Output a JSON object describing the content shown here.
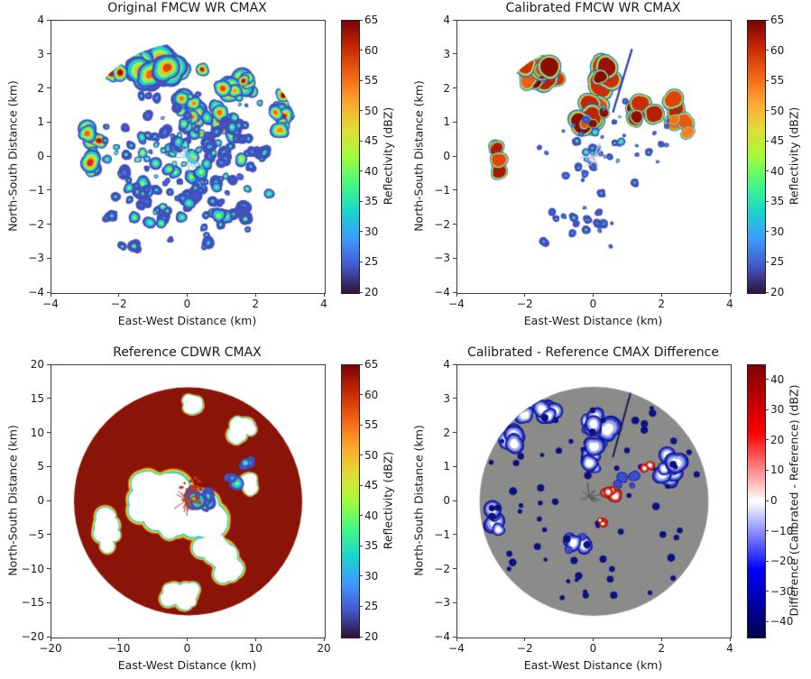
{
  "figure": {
    "background": "#ffffff",
    "description": "Four-panel weather radar CMAX comparison figure"
  },
  "colormaps": {
    "turbo": [
      "#30123b",
      "#4458cb",
      "#3e9bfe",
      "#18d6cb",
      "#46f884",
      "#a2fc3c",
      "#e1dd37",
      "#fea632",
      "#f36315",
      "#c92903",
      "#7a0403"
    ],
    "seismic": [
      "#00004c",
      "#0000ff",
      "#ffffff",
      "#ff0000",
      "#7f0000"
    ]
  },
  "chart_data": {
    "type": "heatmap",
    "panels": [
      {
        "title": "Original FMCW WR CMAX",
        "xlabel": "East-West Distance (km)",
        "ylabel": "North-South Distance (km)",
        "xlim": [
          -4,
          4
        ],
        "ylim": [
          -4,
          4
        ],
        "xticks": [
          -4,
          -2,
          0,
          2,
          4
        ],
        "yticks": [
          4,
          3,
          2,
          1,
          0,
          -1,
          -2,
          -3,
          -4
        ],
        "colorbar": {
          "label": "Reflectivity (dBZ)",
          "range": [
            20,
            65
          ],
          "ticks": [
            65,
            60,
            55,
            50,
            45,
            40,
            35,
            30,
            25,
            20
          ],
          "colormap": "turbo"
        },
        "field": {
          "kind": "echoes",
          "seed": 7,
          "domain_radius_km": 3.35,
          "clusters": [
            {
              "cx": -0.6,
              "cy": 2.55,
              "sx": 1.7,
              "sy": 0.45,
              "n": 24,
              "v": [
                52,
                65
              ],
              "r": [
                0.18,
                0.42
              ]
            },
            {
              "cx": 1.6,
              "cy": 2.1,
              "sx": 0.7,
              "sy": 0.45,
              "n": 10,
              "v": [
                48,
                65
              ],
              "r": [
                0.15,
                0.35
              ]
            },
            {
              "cx": 2.75,
              "cy": 1.1,
              "sx": 0.35,
              "sy": 0.85,
              "n": 12,
              "v": [
                48,
                65
              ],
              "r": [
                0.12,
                0.3
              ]
            },
            {
              "cx": -2.85,
              "cy": 0.2,
              "sx": 0.3,
              "sy": 1.0,
              "n": 10,
              "v": [
                45,
                64
              ],
              "r": [
                0.12,
                0.3
              ]
            },
            {
              "cx": 0.15,
              "cy": 1.3,
              "sx": 0.5,
              "sy": 0.8,
              "n": 12,
              "v": [
                48,
                65
              ],
              "r": [
                0.12,
                0.32
              ]
            },
            {
              "cx": 1.0,
              "cy": 1.0,
              "sx": 0.9,
              "sy": 0.5,
              "n": 8,
              "v": [
                45,
                62
              ],
              "r": [
                0.12,
                0.28
              ]
            },
            {
              "cx": 0,
              "cy": -0.9,
              "sx": 2.7,
              "sy": 1.9,
              "n": 110,
              "v": [
                24,
                45
              ],
              "r": [
                0.06,
                0.2
              ]
            },
            {
              "cx": 0,
              "cy": 0.7,
              "sx": 2.9,
              "sy": 1.7,
              "n": 75,
              "v": [
                24,
                48
              ],
              "r": [
                0.05,
                0.18
              ]
            }
          ],
          "starburst": {
            "x": 0,
            "y": 0,
            "n": 22,
            "len": 0.55,
            "color": "#5ec8dd",
            "w": 1
          }
        }
      },
      {
        "title": "Calibrated FMCW WR CMAX",
        "xlabel": "East-West Distance (km)",
        "ylabel": "North-South Distance (km)",
        "xlim": [
          -4,
          4
        ],
        "ylim": [
          -4,
          4
        ],
        "xticks": [
          -4,
          -2,
          0,
          2,
          4
        ],
        "yticks": [
          4,
          3,
          2,
          1,
          0,
          -1,
          -2,
          -3,
          -4
        ],
        "colorbar": {
          "label": "Reflectivity (dBZ)",
          "range": [
            20,
            65
          ],
          "ticks": [
            65,
            60,
            55,
            50,
            45,
            40,
            35,
            30,
            25,
            20
          ],
          "colormap": "turbo"
        },
        "field": {
          "kind": "echoes",
          "seed": 13,
          "domain_radius_km": 3.35,
          "clusters": [
            {
              "cx": -1.55,
              "cy": 2.5,
              "sx": 0.65,
              "sy": 0.4,
              "n": 12,
              "v": [
                56,
                65
              ],
              "r": [
                0.18,
                0.4
              ],
              "rim": 1
            },
            {
              "cx": 0.1,
              "cy": 2.35,
              "sx": 0.4,
              "sy": 0.4,
              "n": 8,
              "v": [
                56,
                65
              ],
              "r": [
                0.15,
                0.35
              ],
              "rim": 1
            },
            {
              "cx": -0.05,
              "cy": 1.25,
              "sx": 0.45,
              "sy": 0.65,
              "n": 12,
              "v": [
                56,
                65
              ],
              "r": [
                0.15,
                0.38
              ],
              "rim": 1
            },
            {
              "cx": 1.35,
              "cy": 1.35,
              "sx": 0.5,
              "sy": 0.28,
              "n": 7,
              "v": [
                55,
                65
              ],
              "r": [
                0.15,
                0.3
              ],
              "rim": 1
            },
            {
              "cx": 2.55,
              "cy": 1.2,
              "sx": 0.3,
              "sy": 0.85,
              "n": 9,
              "v": [
                54,
                65
              ],
              "r": [
                0.12,
                0.3
              ],
              "rim": 1
            },
            {
              "cx": -2.85,
              "cy": -0.15,
              "sx": 0.22,
              "sy": 0.5,
              "n": 5,
              "v": [
                50,
                64
              ],
              "r": [
                0.12,
                0.26
              ],
              "rim": 1
            },
            {
              "cx": 0.3,
              "cy": 0.2,
              "sx": 2.3,
              "sy": 1.6,
              "n": 45,
              "v": [
                24,
                40
              ],
              "r": [
                0.04,
                0.12
              ]
            },
            {
              "cx": -0.2,
              "cy": -2.0,
              "sx": 1.5,
              "sy": 0.9,
              "n": 18,
              "v": [
                24,
                38
              ],
              "r": [
                0.04,
                0.13
              ]
            }
          ],
          "lines": [
            {
              "x1": 0.55,
              "y1": 1.3,
              "x2": 1.15,
              "y2": 3.3,
              "color": "#2f3db5",
              "w": 2.2
            }
          ],
          "starburst": {
            "x": 0,
            "y": 0,
            "n": 16,
            "len": 0.45,
            "color": "#b9c7d6",
            "w": 1
          }
        }
      },
      {
        "title": "Reference CDWR CMAX",
        "xlabel": "East-West Distance (km)",
        "ylabel": "North-South Distance (km)",
        "xlim": [
          -20,
          20
        ],
        "ylim": [
          -20,
          20
        ],
        "xticks": [
          -20,
          -10,
          0,
          10,
          20
        ],
        "yticks": [
          20,
          15,
          10,
          5,
          0,
          -5,
          -10,
          -15,
          -20
        ],
        "colorbar": {
          "label": "Reflectivity (dBZ)",
          "range": [
            20,
            65
          ],
          "ticks": [
            65,
            60,
            55,
            50,
            45,
            40,
            35,
            30,
            25,
            20
          ],
          "colormap": "turbo"
        },
        "field": {
          "kind": "reference",
          "seed": 5,
          "domain_radius_km": 16.7,
          "base": "#8a1408",
          "fringe": [
            "#f36315",
            "#ffd21f",
            "#6ef15c",
            "#19d3c5",
            "#3e9bfe"
          ],
          "holes": [
            {
              "cx": -3.5,
              "cy": -1.0,
              "sx": 3.2,
              "sy": 4.2,
              "n": 14,
              "r": [
                1.2,
                2.6
              ]
            },
            {
              "cx": 3.5,
              "cy": -7.5,
              "sx": 3.2,
              "sy": 2.6,
              "n": 10,
              "r": [
                1.0,
                2.4
              ]
            },
            {
              "cx": 2.5,
              "cy": -2.0,
              "sx": 2.5,
              "sy": 2.0,
              "n": 8,
              "r": [
                1.0,
                2.2
              ]
            },
            {
              "cx": -11.5,
              "cy": -4.0,
              "sx": 1.5,
              "sy": 3.0,
              "n": 6,
              "r": [
                0.8,
                1.6
              ]
            },
            {
              "cx": 0.5,
              "cy": 14.0,
              "sx": 0.8,
              "sy": 1.8,
              "n": 4,
              "r": [
                0.5,
                1.1
              ]
            },
            {
              "cx": 7.5,
              "cy": 11.0,
              "sx": 1.2,
              "sy": 1.8,
              "n": 4,
              "r": [
                0.6,
                1.3
              ]
            },
            {
              "cx": 8.5,
              "cy": 2.0,
              "sx": 1.2,
              "sy": 1.2,
              "n": 3,
              "r": [
                0.8,
                1.4
              ]
            },
            {
              "cx": -1.0,
              "cy": -14.0,
              "sx": 2.5,
              "sy": 1.2,
              "n": 5,
              "r": [
                0.7,
                1.4
              ]
            }
          ],
          "clusters": [
            {
              "cx": 2.0,
              "cy": 0.0,
              "sx": 1.8,
              "sy": 1.8,
              "n": 9,
              "v": [
                30,
                52
              ],
              "r": [
                0.5,
                1.3
              ]
            },
            {
              "cx": 6.5,
              "cy": 3.0,
              "sx": 1.0,
              "sy": 1.0,
              "n": 3,
              "v": [
                28,
                45
              ],
              "r": [
                0.4,
                1.0
              ]
            },
            {
              "cx": 9.0,
              "cy": 5.5,
              "sx": 0.8,
              "sy": 0.8,
              "n": 3,
              "v": [
                26,
                40
              ],
              "r": [
                0.4,
                0.9
              ]
            }
          ],
          "spray": {
            "cx": 1.0,
            "cy": 1.5,
            "sx": 2.2,
            "sy": 2.2,
            "n": 36,
            "color": "#c03511"
          },
          "starburst": {
            "x": -0.2,
            "y": 0.2,
            "n": 20,
            "len": 2.4,
            "color": "#b5452a",
            "w": 1
          }
        }
      },
      {
        "title": "Calibrated - Reference CMAX Difference",
        "xlabel": "East-West Distance (km)",
        "ylabel": "North-South Distance (km)",
        "xlim": [
          -4,
          4
        ],
        "ylim": [
          -4,
          4
        ],
        "xticks": [
          -4,
          -2,
          0,
          2,
          4
        ],
        "yticks": [
          4,
          3,
          2,
          1,
          0,
          -1,
          -2,
          -3,
          -4
        ],
        "colorbar": {
          "label": "Difference (Calibrated - Reference) (dBZ)",
          "range": [
            -45,
            45
          ],
          "ticks": [
            40,
            30,
            20,
            10,
            0,
            -10,
            -20,
            -30,
            -40
          ],
          "colormap": "seismic"
        },
        "field": {
          "kind": "difference",
          "seed": 29,
          "domain_radius_km": 3.35,
          "base": "#8b8b89",
          "blue_rings": [
            [
              "#0e129b",
              1
            ],
            [
              "#3d4ecb",
              0.85
            ],
            [
              "#9fa9ea",
              0.68
            ],
            [
              "#ffffff",
              0.45
            ]
          ],
          "red_rings": [
            [
              "#9e120c",
              1
            ],
            [
              "#e0372a",
              0.78
            ],
            [
              "#f7b9b2",
              0.52
            ],
            [
              "#ffffff",
              0.36
            ]
          ],
          "blue_clusters": [
            {
              "cx": -1.6,
              "cy": 2.6,
              "sx": 0.6,
              "sy": 0.35,
              "n": 8,
              "r": [
                0.15,
                0.4
              ]
            },
            {
              "cx": -2.4,
              "cy": 1.9,
              "sx": 0.3,
              "sy": 0.3,
              "n": 4,
              "r": [
                0.1,
                0.3
              ]
            },
            {
              "cx": 0.1,
              "cy": 2.2,
              "sx": 0.4,
              "sy": 0.7,
              "n": 10,
              "r": [
                0.12,
                0.35
              ]
            },
            {
              "cx": -0.1,
              "cy": 1.2,
              "sx": 0.4,
              "sy": 0.5,
              "n": 8,
              "r": [
                0.12,
                0.3
              ]
            },
            {
              "cx": 2.3,
              "cy": 1.0,
              "sx": 0.35,
              "sy": 0.55,
              "n": 7,
              "r": [
                0.12,
                0.32
              ]
            },
            {
              "cx": -2.85,
              "cy": -0.4,
              "sx": 0.25,
              "sy": 0.5,
              "n": 5,
              "r": [
                0.12,
                0.3
              ]
            },
            {
              "cx": 1.0,
              "cy": 0.6,
              "sx": 0.4,
              "sy": 0.3,
              "n": 4,
              "r": [
                0.08,
                0.2
              ]
            },
            {
              "cx": -0.6,
              "cy": -1.3,
              "sx": 0.5,
              "sy": 0.4,
              "n": 5,
              "r": [
                0.1,
                0.25
              ]
            }
          ],
          "red_clusters": [
            {
              "cx": 0.6,
              "cy": 0.2,
              "sx": 0.35,
              "sy": 0.25,
              "n": 4,
              "r": [
                0.1,
                0.22
              ]
            },
            {
              "cx": 1.55,
              "cy": 1.0,
              "sx": 0.15,
              "sy": 0.15,
              "n": 2,
              "r": [
                0.08,
                0.16
              ]
            },
            {
              "cx": 0.3,
              "cy": -0.6,
              "sx": 0.3,
              "sy": 0.2,
              "n": 3,
              "r": [
                0.06,
                0.14
              ]
            }
          ],
          "specks": {
            "n": 70,
            "color": "#0d1180",
            "r": [
              0.03,
              0.09
            ]
          },
          "lines": [
            {
              "x1": 0.55,
              "y1": 1.3,
              "x2": 1.1,
              "y2": 3.3,
              "color": "#1a2050",
              "w": 2
            }
          ],
          "starburst": {
            "x": -0.15,
            "y": 0.15,
            "n": 14,
            "len": 0.45,
            "color": "#565b52",
            "w": 1
          }
        }
      }
    ]
  }
}
